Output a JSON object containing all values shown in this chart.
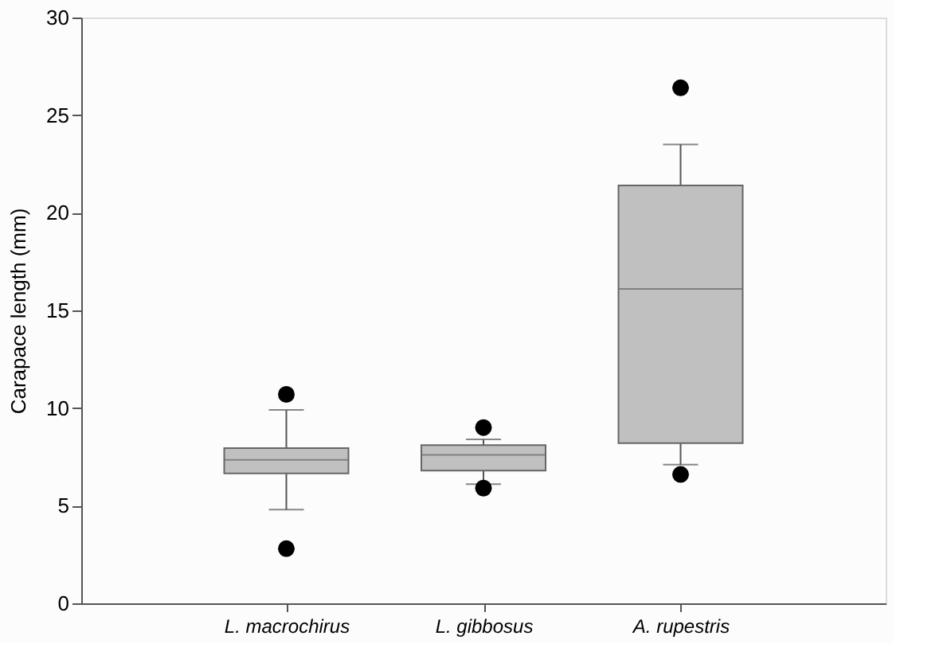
{
  "chart_data": {
    "type": "box",
    "ylabel": "Carapace length (mm)",
    "categories": [
      "L. macrochirus",
      "L. gibbosus",
      "A. rupestris"
    ],
    "boxes": [
      {
        "low": 4.8,
        "q1": 6.65,
        "median": 7.35,
        "q3": 7.95,
        "high": 9.9,
        "outliers": [
          10.7,
          2.8
        ]
      },
      {
        "low": 6.1,
        "q1": 6.8,
        "median": 7.6,
        "q3": 8.1,
        "high": 8.4,
        "outliers": [
          9.0,
          5.9
        ]
      },
      {
        "low": 7.1,
        "q1": 8.2,
        "median": 16.1,
        "q3": 21.4,
        "high": 23.5,
        "outliers": [
          26.4,
          6.6
        ]
      }
    ],
    "color": "#c0c0c0",
    "ylim": [
      0,
      30
    ],
    "yticks": [
      0,
      5,
      10,
      15,
      20,
      25,
      30
    ],
    "grid": false
  }
}
